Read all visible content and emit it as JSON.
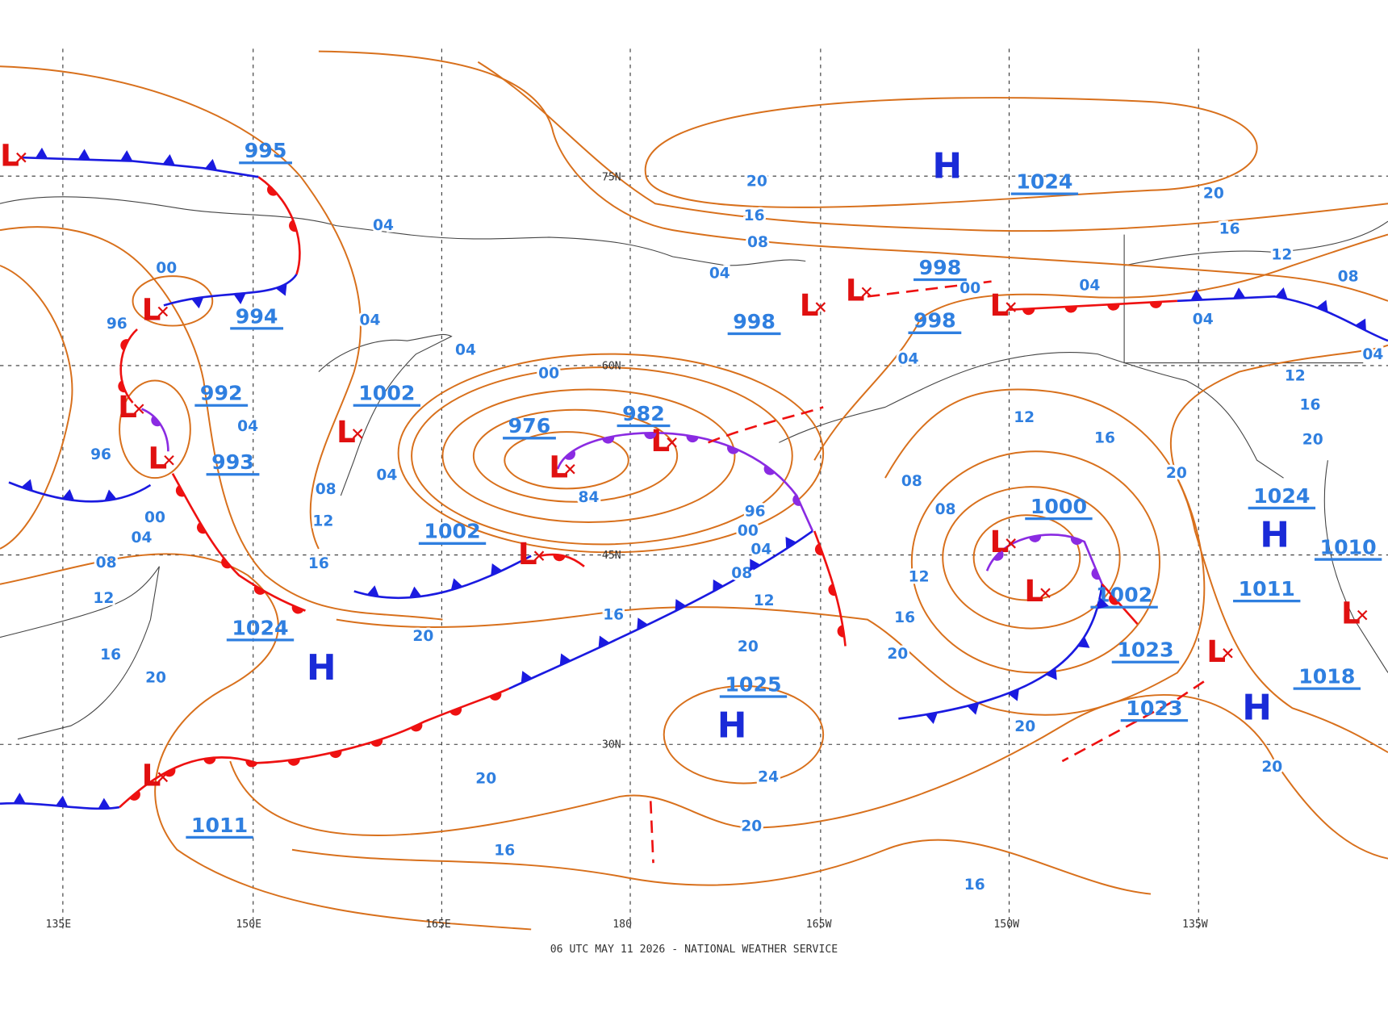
{
  "map": {
    "footer": "06 UTC MAY 11 2026 - NATIONAL WEATHER SERVICE",
    "latitude_labels": [
      "75N",
      "60N",
      "45N",
      "30N"
    ],
    "longitude_labels": [
      "135E",
      "150E",
      "165E",
      "180",
      "165W",
      "150W",
      "135W"
    ],
    "pressure_labels": [
      "995",
      "994",
      "992",
      "993",
      "1002",
      "1002",
      "976",
      "982",
      "998",
      "998",
      "998",
      "1024",
      "1000",
      "1002",
      "1023",
      "1023",
      "1024",
      "1010",
      "1011",
      "1018",
      "1025",
      "1024",
      "1011"
    ],
    "high_centers": [
      "H",
      "H",
      "H",
      "H",
      "H"
    ],
    "low_centers": [
      "L",
      "L",
      "L",
      "L",
      "L",
      "L",
      "L",
      "L",
      "L",
      "L",
      "L",
      "L",
      "L",
      "L",
      "L",
      "L"
    ],
    "isobar_labels": [
      "04",
      "04",
      "00",
      "96",
      "04",
      "00",
      "04",
      "96",
      "04",
      "08",
      "00",
      "04",
      "12",
      "16",
      "08",
      "12",
      "16",
      "20",
      "84",
      "96",
      "00",
      "04",
      "08",
      "12",
      "16",
      "20",
      "20",
      "16",
      "20",
      "08",
      "04",
      "20",
      "16",
      "12",
      "08",
      "04",
      "04",
      "00",
      "04",
      "12",
      "16",
      "20",
      "20",
      "12",
      "16",
      "08",
      "08",
      "12",
      "16",
      "20",
      "20",
      "20",
      "24",
      "20",
      "20",
      "16",
      "16",
      "04"
    ]
  }
}
